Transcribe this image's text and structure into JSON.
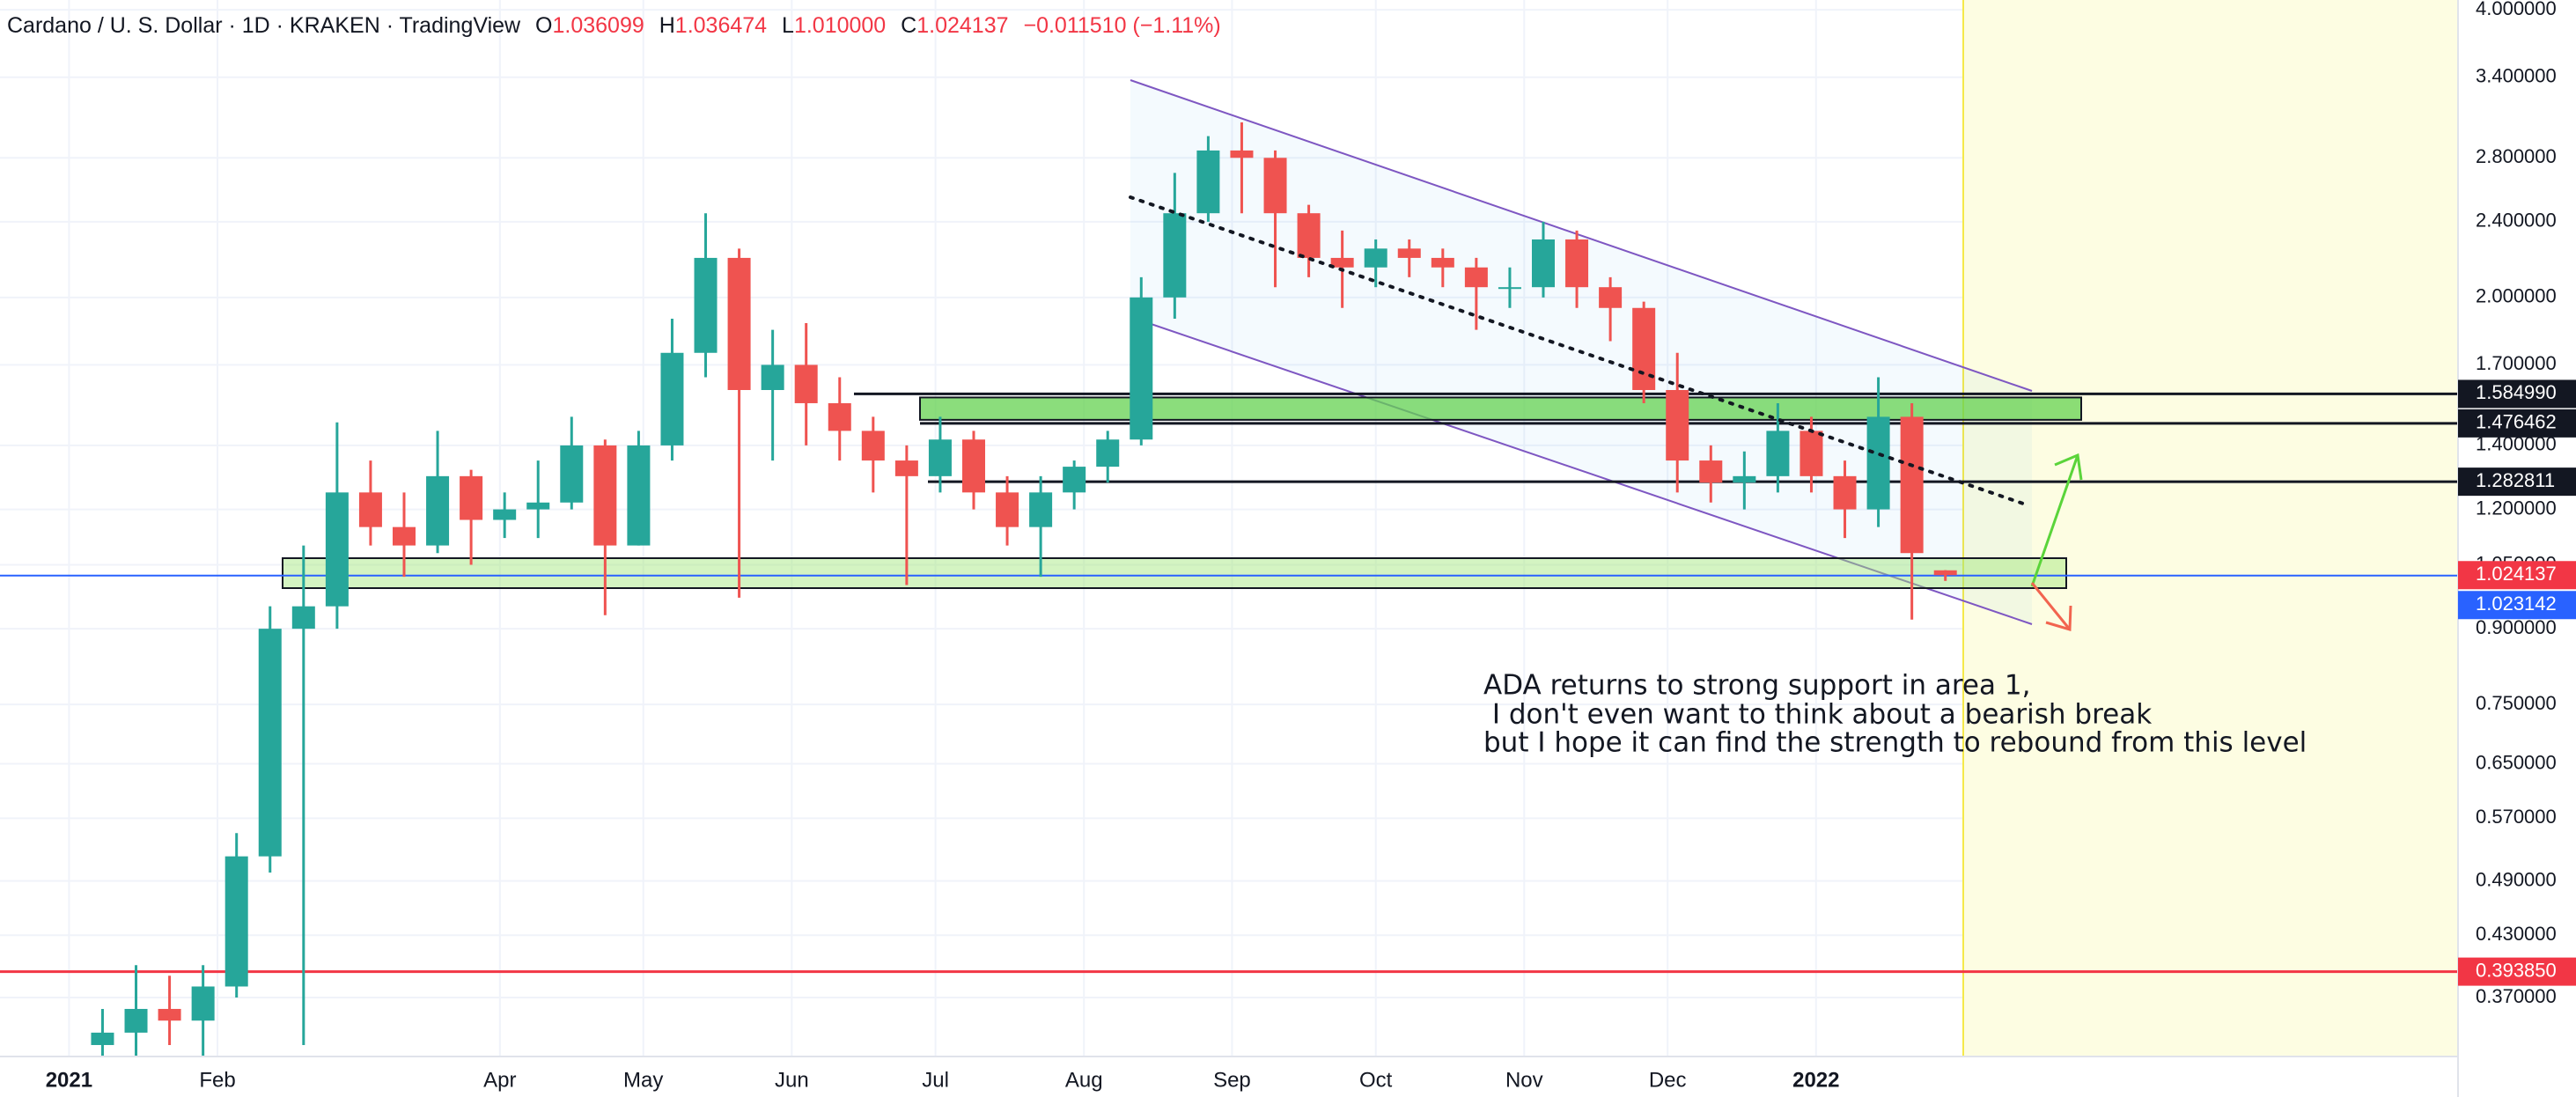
{
  "chart_data": {
    "type": "candlestick",
    "title": "Cardano / U. S. Dollar · 1D · KRAKEN · TradingView",
    "ohlc_names": [
      "O",
      "H",
      "L",
      "C"
    ],
    "ohlc_labels": [
      "1.036099",
      "1.036474",
      "1.010000",
      "1.024137"
    ],
    "change": "−0.011510 (−1.11%)",
    "annotation": [
      "ADA returns to strong support in area 1,",
      " I don't even want to think about a bearish break",
      "but I hope it can find the strength to rebound from this level"
    ],
    "x": [
      1,
      2,
      3,
      4,
      5,
      6,
      7,
      8,
      9,
      10,
      11,
      12,
      13,
      14,
      15,
      16,
      17,
      18,
      19,
      20,
      21,
      22,
      23,
      24,
      25,
      26,
      27,
      28,
      29,
      30,
      31,
      32,
      33,
      34,
      35,
      36,
      37,
      38,
      39,
      40,
      41,
      42,
      43,
      44,
      45,
      46,
      47,
      48,
      49,
      50,
      51,
      52,
      53,
      54,
      55,
      56
    ],
    "open": [
      0.33,
      0.34,
      0.36,
      0.35,
      0.38,
      0.52,
      0.9,
      0.95,
      1.25,
      1.15,
      1.1,
      1.3,
      1.17,
      1.2,
      1.22,
      1.4,
      1.1,
      1.4,
      1.75,
      2.2,
      1.6,
      1.7,
      1.55,
      1.45,
      1.35,
      1.3,
      1.42,
      1.25,
      1.15,
      1.25,
      1.33,
      1.42,
      2.0,
      2.45,
      2.85,
      2.8,
      2.45,
      2.2,
      2.15,
      2.25,
      2.2,
      2.15,
      2.05,
      2.05,
      2.3,
      2.05,
      1.95,
      1.6,
      1.35,
      1.28,
      1.3,
      1.45,
      1.3,
      1.2,
      1.5,
      1.036099
    ],
    "high": [
      0.36,
      0.4,
      0.39,
      0.4,
      0.55,
      0.95,
      1.1,
      1.48,
      1.35,
      1.25,
      1.45,
      1.32,
      1.25,
      1.35,
      1.5,
      1.42,
      1.45,
      1.9,
      2.45,
      2.25,
      1.85,
      1.88,
      1.65,
      1.5,
      1.4,
      1.5,
      1.45,
      1.3,
      1.3,
      1.35,
      1.45,
      2.1,
      2.7,
      2.95,
      3.05,
      2.85,
      2.5,
      2.35,
      2.3,
      2.3,
      2.25,
      2.2,
      2.15,
      2.4,
      2.35,
      2.1,
      1.98,
      1.75,
      1.4,
      1.38,
      1.55,
      1.5,
      1.35,
      1.65,
      1.55,
      1.036474
    ],
    "low": [
      0.31,
      0.32,
      0.33,
      0.32,
      0.37,
      0.5,
      0.33,
      0.9,
      1.1,
      1.02,
      1.08,
      1.05,
      1.12,
      1.12,
      1.2,
      0.93,
      1.1,
      1.35,
      1.65,
      0.97,
      1.35,
      1.4,
      1.35,
      1.25,
      1.0,
      1.25,
      1.2,
      1.1,
      1.02,
      1.2,
      1.28,
      1.4,
      1.9,
      2.4,
      2.45,
      2.05,
      2.1,
      1.95,
      2.05,
      2.1,
      2.05,
      1.85,
      1.95,
      2.0,
      1.95,
      1.8,
      1.55,
      1.25,
      1.22,
      1.2,
      1.25,
      1.25,
      1.12,
      1.15,
      0.92,
      1.01
    ],
    "close": [
      0.34,
      0.36,
      0.35,
      0.38,
      0.52,
      0.9,
      0.95,
      1.25,
      1.15,
      1.1,
      1.3,
      1.17,
      1.2,
      1.22,
      1.4,
      1.1,
      1.4,
      1.75,
      2.2,
      1.6,
      1.7,
      1.55,
      1.45,
      1.35,
      1.3,
      1.42,
      1.25,
      1.15,
      1.25,
      1.33,
      1.42,
      2.0,
      2.45,
      2.85,
      2.8,
      2.45,
      2.2,
      2.15,
      2.25,
      2.2,
      2.15,
      2.05,
      2.05,
      2.3,
      2.05,
      1.95,
      1.6,
      1.35,
      1.28,
      1.3,
      1.45,
      1.3,
      1.2,
      1.5,
      1.08,
      1.024137
    ],
    "up_color": "#26a69a",
    "down_color": "#ef5350",
    "log_scale": true,
    "grid": true,
    "xlim": [
      -2.06,
      71.3
    ],
    "xticks": [
      {
        "value": 0,
        "label": "2021"
      },
      {
        "value": 4.43,
        "label": "Feb"
      },
      {
        "value": 12.86,
        "label": "Apr"
      },
      {
        "value": 17.14,
        "label": "May"
      },
      {
        "value": 21.57,
        "label": "Jun"
      },
      {
        "value": 25.86,
        "label": "Jul"
      },
      {
        "value": 30.29,
        "label": "Aug"
      },
      {
        "value": 34.71,
        "label": "Sep"
      },
      {
        "value": 39,
        "label": "Oct"
      },
      {
        "value": 43.43,
        "label": "Nov"
      },
      {
        "value": 47.71,
        "label": "Dec"
      },
      {
        "value": 52.14,
        "label": "2022"
      }
    ],
    "ylim": [
      0.321,
      4.096
    ],
    "yticks": [
      {
        "value": 4,
        "label": "4.000000"
      },
      {
        "value": 3.4,
        "label": "3.400000"
      },
      {
        "value": 2.8,
        "label": "2.800000"
      },
      {
        "value": 2.4,
        "label": "2.400000"
      },
      {
        "value": 2,
        "label": "2.000000"
      },
      {
        "value": 1.7,
        "label": "1.700000"
      },
      {
        "value": 1.4,
        "label": "1.400000"
      },
      {
        "value": 1.2,
        "label": "1.200000"
      },
      {
        "value": 1.05,
        "label": "1.050000"
      },
      {
        "value": 0.9,
        "label": "0.900000"
      },
      {
        "value": 0.75,
        "label": "0.750000"
      },
      {
        "value": 0.65,
        "label": "0.650000"
      },
      {
        "value": 0.57,
        "label": "0.570000"
      },
      {
        "value": 0.49,
        "label": "0.490000"
      },
      {
        "value": 0.43,
        "label": "0.430000"
      },
      {
        "value": 0.37,
        "label": "0.370000"
      }
    ],
    "levels": [
      {
        "value": 1.58499,
        "label": "1.584990",
        "color": "#131722"
      },
      {
        "value": 1.476462,
        "color": "#131722"
      },
      {
        "value": 1.282811,
        "color": "#131722"
      },
      {
        "value": 1.023142,
        "color": "#2962ff"
      },
      {
        "value": 0.39385,
        "label": "0.393850",
        "color": "#f23645"
      }
    ],
    "price_color": "#f23645"
  }
}
